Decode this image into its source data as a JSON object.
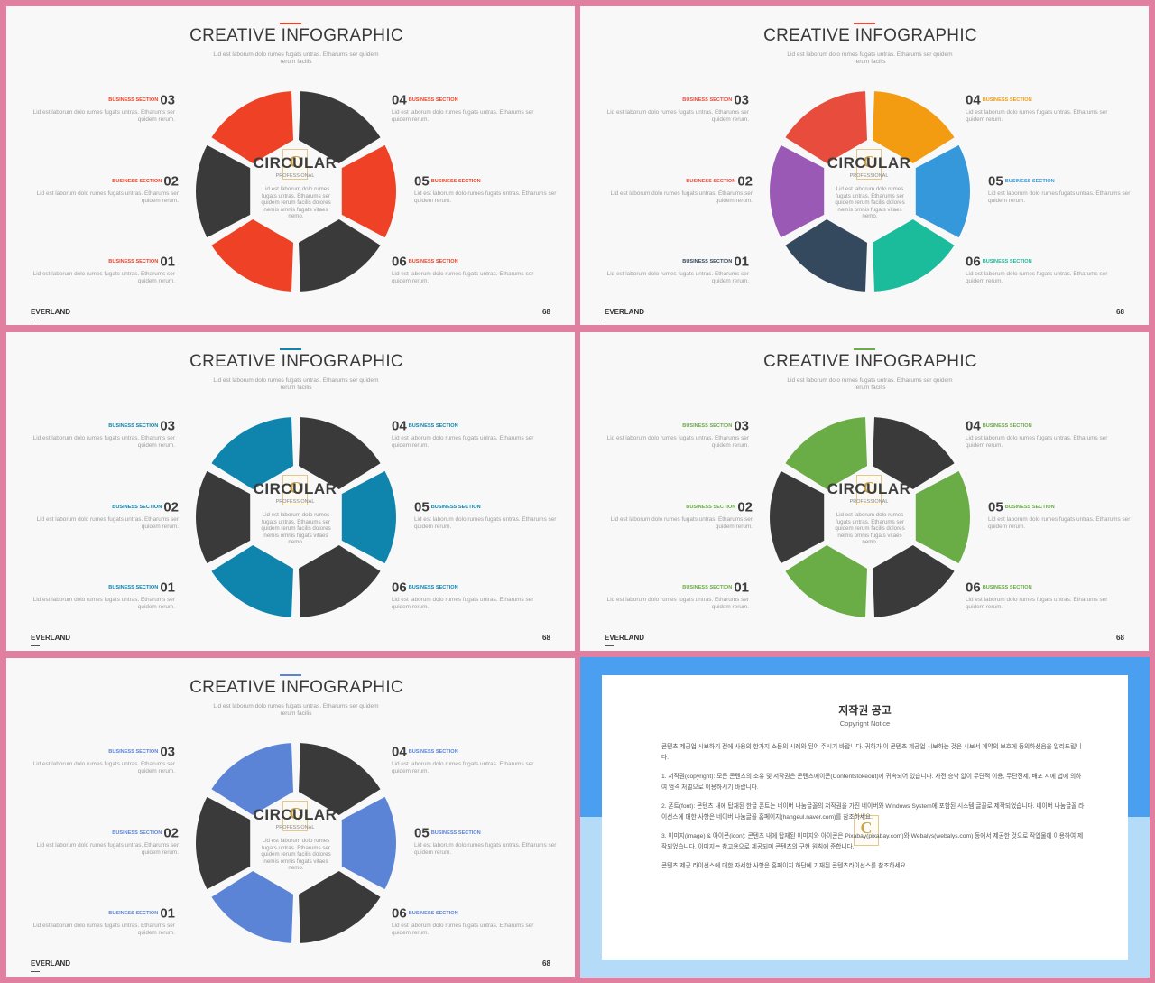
{
  "slide_common": {
    "title": "CREATIVE INFOGRAPHIC",
    "subtitle": "Lid est laborum dolo rumes fugats untras. Etharums ser quidem rerum facilis",
    "center_title": "CIRCULAR",
    "center_subtitle": "PROFESSIONAL",
    "center_desc": "Lid est laborum dolo rumes fugats untras. Etharums ser quidem rerum facilis dolores nemis omnis fugats vitaes nemo.",
    "section_label": "BUSINESS SECTION",
    "item_desc": "Lid est laborum dolo rumes fugats untras. Etharums ser quidem rerum.",
    "numbers": {
      "n01": "01",
      "n02": "02",
      "n03": "03",
      "n04": "04",
      "n05": "05",
      "n06": "06"
    },
    "brand": "EVERLAND",
    "page": "68",
    "logo_glyph": "C"
  },
  "slides": [
    {
      "variant": "two-tone",
      "accent": "#ee4125",
      "dark": "#3a3a3a"
    },
    {
      "variant": "multicolor",
      "segment_colors": {
        "s01": "#34495e",
        "s02": "#9b59b6",
        "s03": "#e74c3c",
        "s04": "#f39c12",
        "s05": "#3498db",
        "s06": "#1abc9c"
      },
      "label_colors": {
        "s01": "#34495e",
        "s02": "#e74c3c",
        "s03": "#e74c3c",
        "s04": "#f39c12",
        "s05": "#3498db",
        "s06": "#1abc9c"
      },
      "line_color": "#e74c3c"
    },
    {
      "variant": "two-tone",
      "accent": "#0f84ad",
      "dark": "#3a3a3a"
    },
    {
      "variant": "two-tone",
      "accent": "#6aac46",
      "dark": "#3a3a3a"
    },
    {
      "variant": "two-tone",
      "accent": "#5b84d6",
      "dark": "#3a3a3a"
    }
  ],
  "notice": {
    "title": "저작권 공고",
    "subtitle": "Copyright Notice",
    "paragraphs": [
      "콘텐츠 제공업 시보하기 전에 사용의 한가지 소문의 시례와 된어 주시기 바랍니다. 귀하가 이 콘텐츠 제공업 시보하는 것은 시보서 계약의 보호에 동의하셨음을 알리드립니다.",
      "1. 저작권(copyright): 모든 콘텐츠의 소유 및 저작권은 콘텐츠에이콘(Contentstokeout)에 귀속되어 있습니다. 사전 승낙 없이 무단적 이용, 무단전제, 배포 시에 법에 의하여 엄격 처벌으로 이용하시기 바랍니다.",
      "2. 폰트(font): 콘텐츠 내에 탑재된 한글 폰트는 네이버 나눔글꼴의 저작권을 가진 네이버와 Windows System에 포함된 시스템 글꼴로 제작되었습니다. 네이버 나눔글꼴 라이선스에 대한 사항은 네이버 나눔글꼴 홈페이지(hangeul.naver.com)를 참조하세요.",
      "3. 이미지(image) & 아이콘(icon): 콘텐츠 내에 탑재된 이미지와 아이콘은 Pixabay(pixabay.com)와 Webalys(webalys.com) 등에서 제공한 것으로 작업물에 이용하여 제작되었습니다. 이미지는 참고용으로 제공되며 콘텐츠의 구현 원칙에 준합니다.",
      "콘텐츠 제공 라이선스에 대한 자세한 사항은 홈페이지 하단에 기재된 콘텐츠라이선스를 참조하세요."
    ]
  }
}
